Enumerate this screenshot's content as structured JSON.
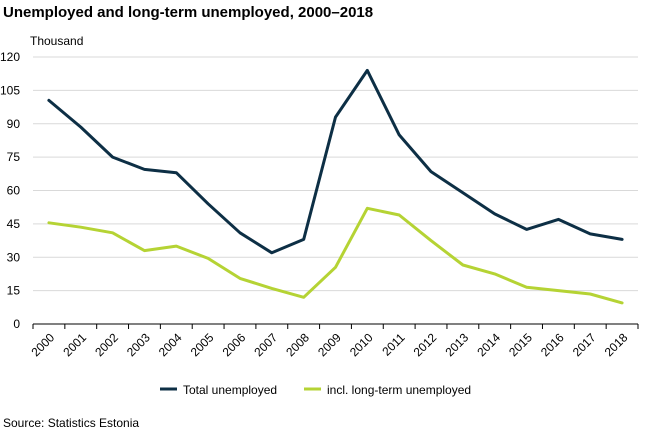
{
  "title": "Unemployed and long-term unemployed, 2000–2018",
  "source": "Source: Statistics Estonia",
  "chart_data": {
    "type": "line",
    "title": "Unemployed and long-term unemployed, 2000–2018",
    "unit_label": "Thousand",
    "xlabel": "",
    "ylabel": "",
    "categories": [
      "2000",
      "2001",
      "2002",
      "2003",
      "2004",
      "2005",
      "2006",
      "2007",
      "2008",
      "2009",
      "2010",
      "2011",
      "2012",
      "2013",
      "2014",
      "2015",
      "2016",
      "2017",
      "2018"
    ],
    "ylim": [
      0,
      120
    ],
    "yticks": [
      0,
      15,
      30,
      45,
      60,
      75,
      90,
      105,
      120
    ],
    "grid": true,
    "legend_position": "bottom",
    "series": [
      {
        "name": "Total unemployed",
        "color": "#0d2f45",
        "values": [
          100.5,
          88.5,
          75,
          69.5,
          68,
          54,
          41,
          32,
          38,
          93,
          114,
          85,
          68.5,
          59,
          49.5,
          42.5,
          47,
          40.5,
          38
        ]
      },
      {
        "name": "incl. long-term unemployed",
        "color": "#b5d334",
        "values": [
          45.5,
          43.5,
          41,
          33,
          35,
          29.5,
          20.5,
          16,
          12,
          25.5,
          52,
          49,
          37.5,
          26.5,
          22.5,
          16.5,
          15,
          13.5,
          9.5
        ]
      }
    ]
  }
}
